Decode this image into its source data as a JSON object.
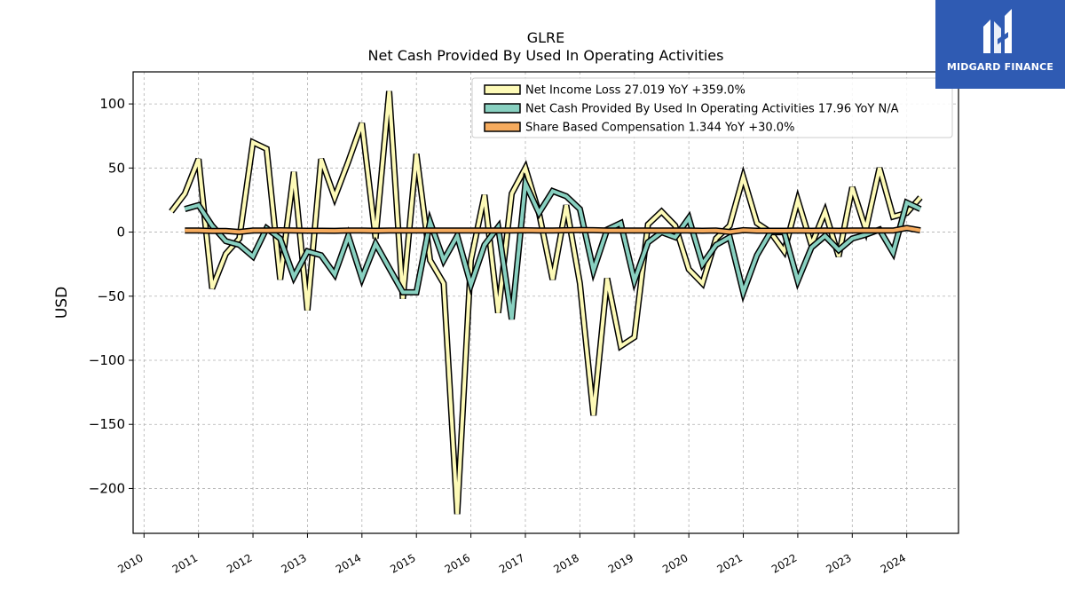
{
  "brand": {
    "name": "MIDGARD FINANCE",
    "bg_color": "#2f5bb3",
    "icon": "midgard-logo-icon"
  },
  "chart_data": {
    "type": "line",
    "title": "GLRE",
    "subtitle": "Net Cash Provided By Used In Operating Activities",
    "ylabel": "USD",
    "xlabel": "",
    "ylim": [
      -235,
      125
    ],
    "xlim": [
      2009.8,
      2024.95
    ],
    "grid": true,
    "legend_position": "top-right",
    "yticks": [
      100,
      50,
      0,
      -50,
      -100,
      -150,
      -200
    ],
    "ytick_labels": [
      "100",
      "50",
      "0",
      "−50",
      "−100",
      "−150",
      "−200"
    ],
    "xticks": [
      "2010",
      "2011",
      "2012",
      "2013",
      "2014",
      "2015",
      "2016",
      "2017",
      "2018",
      "2019",
      "2020",
      "2021",
      "2022",
      "2023",
      "2024"
    ],
    "series": [
      {
        "name": "Net Income Loss",
        "legend_label": "Net Income Loss  27.019 YoY +359.0%",
        "color": "#fdfab7",
        "points": [
          [
            2010.5,
            16
          ],
          [
            2010.75,
            30
          ],
          [
            2011.0,
            57
          ],
          [
            2011.25,
            -44
          ],
          [
            2011.5,
            -17
          ],
          [
            2011.75,
            -5
          ],
          [
            2012.0,
            70
          ],
          [
            2012.25,
            65
          ],
          [
            2012.5,
            -37
          ],
          [
            2012.75,
            47
          ],
          [
            2013.0,
            -61
          ],
          [
            2013.25,
            57
          ],
          [
            2013.5,
            27
          ],
          [
            2013.75,
            55
          ],
          [
            2014.0,
            85
          ],
          [
            2014.25,
            -5
          ],
          [
            2014.5,
            110
          ],
          [
            2014.75,
            -52
          ],
          [
            2015.0,
            61
          ],
          [
            2015.25,
            -22
          ],
          [
            2015.5,
            -40
          ],
          [
            2015.75,
            -220
          ],
          [
            2016.0,
            -22
          ],
          [
            2016.25,
            29
          ],
          [
            2016.5,
            -63
          ],
          [
            2016.75,
            30
          ],
          [
            2017.0,
            50
          ],
          [
            2017.25,
            15
          ],
          [
            2017.5,
            -37
          ],
          [
            2017.75,
            21
          ],
          [
            2018.0,
            -40
          ],
          [
            2018.25,
            -143
          ],
          [
            2018.5,
            -36
          ],
          [
            2018.75,
            -89
          ],
          [
            2019.0,
            -82
          ],
          [
            2019.25,
            6
          ],
          [
            2019.5,
            16
          ],
          [
            2019.75,
            5
          ],
          [
            2020.0,
            -29
          ],
          [
            2020.25,
            -40
          ],
          [
            2020.5,
            -5
          ],
          [
            2020.75,
            5
          ],
          [
            2021.0,
            43
          ],
          [
            2021.25,
            7
          ],
          [
            2021.5,
            0
          ],
          [
            2021.75,
            -15
          ],
          [
            2022.0,
            25
          ],
          [
            2022.25,
            -10
          ],
          [
            2022.5,
            16
          ],
          [
            2022.75,
            -19
          ],
          [
            2023.0,
            35
          ],
          [
            2023.25,
            2
          ],
          [
            2023.5,
            50
          ],
          [
            2023.75,
            12
          ],
          [
            2024.0,
            15
          ],
          [
            2024.25,
            27
          ]
        ]
      },
      {
        "name": "Net Cash Provided By Used In Operating Activities",
        "legend_label": "Net Cash Provided By Used In Operating Activities  17.96 YoY N/A",
        "color": "#88d0c0",
        "points": [
          [
            2010.75,
            18
          ],
          [
            2011.0,
            21
          ],
          [
            2011.25,
            5
          ],
          [
            2011.5,
            -7
          ],
          [
            2011.75,
            -10
          ],
          [
            2012.0,
            -19
          ],
          [
            2012.25,
            3
          ],
          [
            2012.5,
            -5
          ],
          [
            2012.75,
            -35
          ],
          [
            2013.0,
            -15
          ],
          [
            2013.25,
            -18
          ],
          [
            2013.5,
            -33
          ],
          [
            2013.75,
            -3
          ],
          [
            2014.0,
            -36
          ],
          [
            2014.25,
            -9
          ],
          [
            2014.5,
            -28
          ],
          [
            2014.75,
            -47
          ],
          [
            2015.0,
            -47
          ],
          [
            2015.25,
            8
          ],
          [
            2015.5,
            -22
          ],
          [
            2015.75,
            -3
          ],
          [
            2016.0,
            -41
          ],
          [
            2016.25,
            -10
          ],
          [
            2016.5,
            4
          ],
          [
            2016.75,
            -68
          ],
          [
            2017.0,
            38
          ],
          [
            2017.25,
            15
          ],
          [
            2017.5,
            32
          ],
          [
            2017.75,
            28
          ],
          [
            2018.0,
            18
          ],
          [
            2018.25,
            -30
          ],
          [
            2018.5,
            2
          ],
          [
            2018.75,
            7
          ],
          [
            2019.0,
            -38
          ],
          [
            2019.25,
            -8
          ],
          [
            2019.5,
            0
          ],
          [
            2019.75,
            -4
          ],
          [
            2020.0,
            11
          ],
          [
            2020.25,
            -25
          ],
          [
            2020.5,
            -10
          ],
          [
            2020.75,
            -4
          ],
          [
            2021.0,
            -47
          ],
          [
            2021.25,
            -18
          ],
          [
            2021.5,
            0
          ],
          [
            2021.75,
            0
          ],
          [
            2022.0,
            -38
          ],
          [
            2022.25,
            -12
          ],
          [
            2022.5,
            -3
          ],
          [
            2022.75,
            -14
          ],
          [
            2023.0,
            -5
          ],
          [
            2023.25,
            -2
          ],
          [
            2023.5,
            2
          ],
          [
            2023.75,
            -16
          ],
          [
            2024.0,
            23
          ],
          [
            2024.25,
            17.96
          ]
        ]
      },
      {
        "name": "Share Based Compensation",
        "legend_label": "Share Based Compensation  1.344 YoY +30.0%",
        "color": "#f5ab5e",
        "points": [
          [
            2010.75,
            1.3
          ],
          [
            2011.0,
            1.2
          ],
          [
            2011.25,
            0.9
          ],
          [
            2011.5,
            0.9
          ],
          [
            2011.75,
            0.1
          ],
          [
            2012.0,
            1.2
          ],
          [
            2012.25,
            1.3
          ],
          [
            2012.5,
            1.4
          ],
          [
            2012.75,
            1.2
          ],
          [
            2013.0,
            1.1
          ],
          [
            2013.25,
            1.1
          ],
          [
            2013.5,
            1.0
          ],
          [
            2013.75,
            1.3
          ],
          [
            2014.0,
            1.3
          ],
          [
            2014.25,
            1.1
          ],
          [
            2014.5,
            1.3
          ],
          [
            2014.75,
            1.2
          ],
          [
            2015.0,
            1.2
          ],
          [
            2015.25,
            1.3
          ],
          [
            2015.5,
            1.2
          ],
          [
            2015.75,
            1.3
          ],
          [
            2016.0,
            1.2
          ],
          [
            2016.25,
            1.2
          ],
          [
            2016.5,
            1.3
          ],
          [
            2016.75,
            1.2
          ],
          [
            2017.0,
            1.4
          ],
          [
            2017.25,
            1.2
          ],
          [
            2017.5,
            1.2
          ],
          [
            2017.75,
            1.4
          ],
          [
            2018.0,
            1.6
          ],
          [
            2018.25,
            1.5
          ],
          [
            2018.5,
            1.3
          ],
          [
            2018.75,
            1.3
          ],
          [
            2019.0,
            1.2
          ],
          [
            2019.25,
            1.3
          ],
          [
            2019.5,
            1.2
          ],
          [
            2019.75,
            1.3
          ],
          [
            2020.0,
            1.3
          ],
          [
            2020.25,
            1.1
          ],
          [
            2020.5,
            1.2
          ],
          [
            2020.75,
            0.1
          ],
          [
            2021.0,
            1.5
          ],
          [
            2021.25,
            1.1
          ],
          [
            2021.5,
            1.1
          ],
          [
            2021.75,
            1.1
          ],
          [
            2022.0,
            1.2
          ],
          [
            2022.25,
            1.1
          ],
          [
            2022.5,
            1.2
          ],
          [
            2022.75,
            1.1
          ],
          [
            2023.0,
            1.3
          ],
          [
            2023.25,
            1.2
          ],
          [
            2023.5,
            1.3
          ],
          [
            2023.75,
            1.2
          ],
          [
            2024.0,
            3.2
          ],
          [
            2024.25,
            1.344
          ]
        ]
      }
    ]
  }
}
